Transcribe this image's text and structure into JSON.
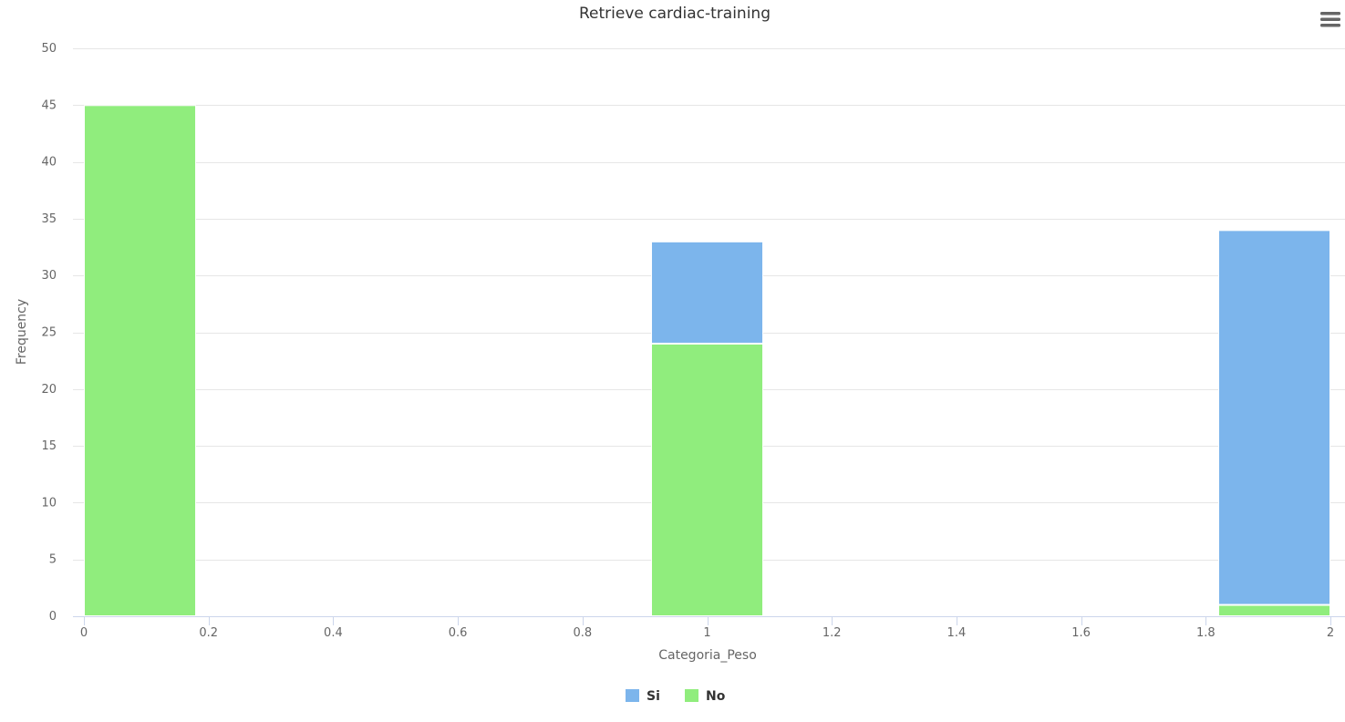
{
  "chart_data": {
    "type": "bar",
    "stacked": true,
    "title": "Retrieve cardiac-training",
    "xlabel": "Categoria_Peso",
    "ylabel": "Frequency",
    "xlim": [
      0,
      2
    ],
    "ylim": [
      0,
      50
    ],
    "x_ticks": [
      "0",
      "0.2",
      "0.4",
      "0.6",
      "0.8",
      "1",
      "1.2",
      "1.4",
      "1.6",
      "1.8",
      "2"
    ],
    "y_ticks": [
      "0",
      "5",
      "10",
      "15",
      "20",
      "25",
      "30",
      "35",
      "40",
      "45",
      "50"
    ],
    "bin_width": 0.18,
    "bins": [
      {
        "x_start": 0.0,
        "x_end": 0.18
      },
      {
        "x_start": 0.91,
        "x_end": 1.09
      },
      {
        "x_start": 1.82,
        "x_end": 2.0
      }
    ],
    "series": [
      {
        "name": "Si",
        "color": "#7cb5ec",
        "values": [
          0,
          9,
          33
        ]
      },
      {
        "name": "No",
        "color": "#90ed7d",
        "values": [
          45,
          24,
          1
        ]
      }
    ],
    "grid": true,
    "legend_position": "bottom-center"
  },
  "menu_icon": "hamburger-menu-icon"
}
